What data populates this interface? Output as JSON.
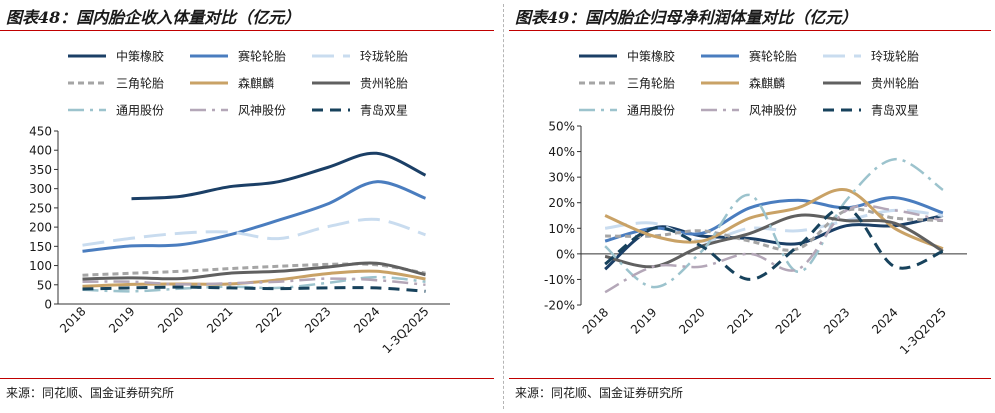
{
  "charts": {
    "left": {
      "title": "图表48：国内胎企收入体量对比（亿元）",
      "source": "来源：同花顺、国金证券研究所"
    },
    "right": {
      "title": "图表49：国内胎企归母净利润体量对比（亿元）",
      "source": "来源：同花顺、国金证券研究所"
    }
  },
  "colors": {
    "中策橡胶": "#1b3f66",
    "赛轮轮胎": "#4a7dbf",
    "玲珑轮胎": "#c9dcef",
    "三角轮胎": "#a5a5a5",
    "森麒麟": "#c9a266",
    "贵州轮胎": "#606060",
    "通用股份": "#9cc3cd",
    "风神股份": "#b4a7b8",
    "青岛双星": "#17425c",
    "title_rule": "#c00000"
  },
  "chart_data": [
    {
      "type": "line",
      "title": "图表48：国内胎企收入体量对比（亿元）",
      "categories": [
        "2018",
        "2019",
        "2020",
        "2021",
        "2022",
        "2023",
        "2024",
        "1-3Q2025"
      ],
      "ylim": [
        0,
        450
      ],
      "yticks": [
        0,
        50,
        100,
        150,
        200,
        250,
        300,
        350,
        400,
        450
      ],
      "ytick_labels": [
        "0",
        "50",
        "100",
        "150",
        "200",
        "250",
        "300",
        "350",
        "400",
        "450"
      ],
      "legend_position": "top",
      "series": [
        {
          "name": "中策橡胶",
          "values": [
            null,
            274,
            280,
            305,
            318,
            355,
            392,
            335
          ]
        },
        {
          "name": "赛轮轮胎",
          "values": [
            137,
            151,
            154,
            180,
            218,
            260,
            318,
            275
          ]
        },
        {
          "name": "玲珑轮胎",
          "values": [
            153,
            171,
            184,
            187,
            170,
            201,
            220,
            180
          ]
        },
        {
          "name": "三角轮胎",
          "values": [
            75,
            80,
            85,
            92,
            98,
            103,
            102,
            80
          ]
        },
        {
          "name": "森麒麟",
          "values": [
            46,
            51,
            52,
            52,
            63,
            79,
            85,
            65
          ]
        },
        {
          "name": "贵州轮胎",
          "values": [
            65,
            68,
            66,
            80,
            85,
            96,
            106,
            76
          ]
        },
        {
          "name": "通用股份",
          "values": [
            37,
            33,
            40,
            45,
            42,
            55,
            70,
            58
          ]
        },
        {
          "name": "风神股份",
          "values": [
            58,
            58,
            51,
            54,
            58,
            66,
            62,
            50
          ]
        },
        {
          "name": "青岛双星",
          "values": [
            39,
            42,
            44,
            42,
            40,
            42,
            42,
            33
          ]
        }
      ]
    },
    {
      "type": "line",
      "title": "图表49：国内胎企归母净利润体量对比（亿元）",
      "categories": [
        "2018",
        "2019",
        "2020",
        "2021",
        "2022",
        "2023",
        "2024",
        "1-3Q2025"
      ],
      "ylim": [
        -20,
        50
      ],
      "yticks": [
        -20,
        -10,
        0,
        10,
        20,
        30,
        40,
        50
      ],
      "ytick_labels": [
        "-20%",
        "-10%",
        "0%",
        "10%",
        "20%",
        "30%",
        "40%",
        "50%"
      ],
      "legend_position": "top",
      "series": [
        {
          "name": "中策橡胶",
          "values": [
            -6,
            10,
            7,
            6,
            4,
            11,
            11,
            15
          ]
        },
        {
          "name": "赛轮轮胎",
          "values": [
            5,
            10,
            8,
            18,
            21,
            18,
            22,
            16
          ]
        },
        {
          "name": "玲珑轮胎",
          "values": [
            10,
            12,
            5,
            10,
            9,
            13,
            17,
            15
          ]
        },
        {
          "name": "三角轮胎",
          "values": [
            7,
            7,
            9,
            5,
            2,
            17,
            14,
            13
          ]
        },
        {
          "name": "森麒麟",
          "values": [
            15,
            7,
            5,
            14,
            18,
            25,
            10,
            2
          ]
        },
        {
          "name": "贵州轮胎",
          "values": [
            -1,
            -5,
            3,
            8,
            15,
            13,
            12,
            1
          ]
        },
        {
          "name": "通用股份",
          "values": [
            3,
            -13,
            1,
            23,
            -7,
            21,
            37,
            25
          ]
        },
        {
          "name": "风神股份",
          "values": [
            -15,
            -5,
            -5,
            0,
            -6,
            17,
            17,
            13
          ]
        },
        {
          "name": "青岛双星",
          "values": [
            -4,
            10,
            3,
            -10,
            3,
            18,
            -5,
            1
          ]
        }
      ]
    }
  ]
}
